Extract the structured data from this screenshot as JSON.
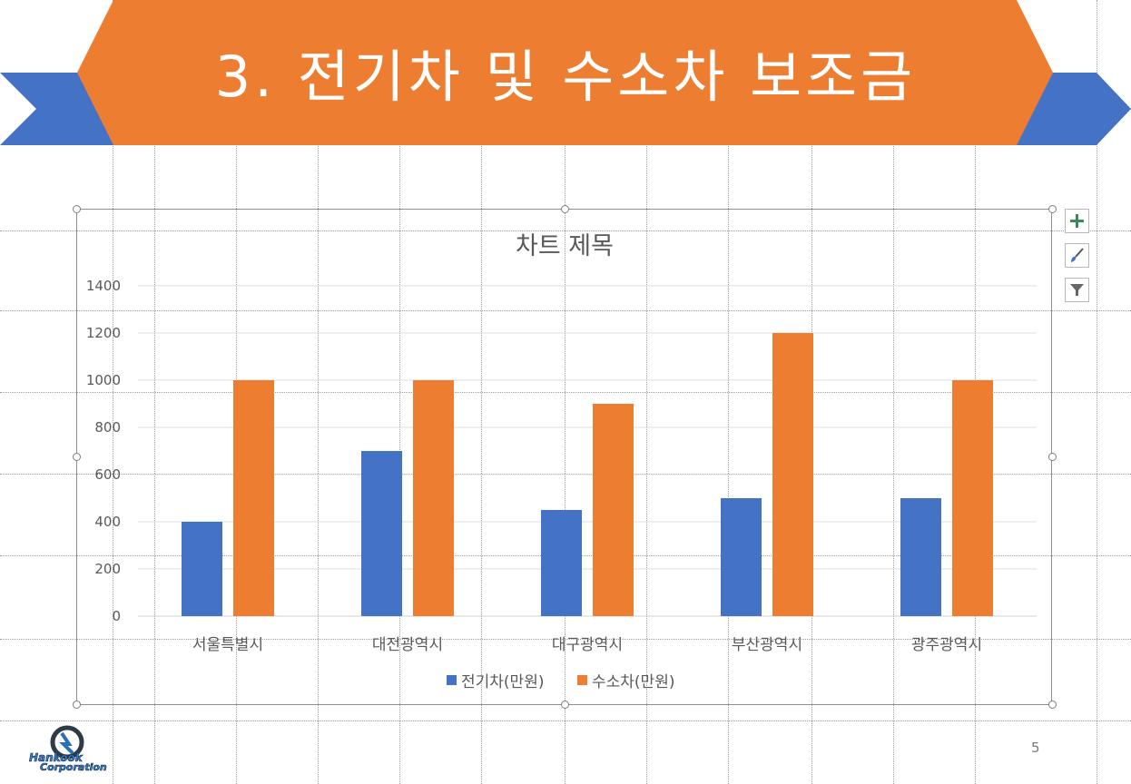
{
  "slide": {
    "title": "3. 전기차 및 수소차 보조금",
    "page_number": "5"
  },
  "logo": {
    "line1": "Hankook",
    "line2": "Corporation"
  },
  "chart_tools": {
    "add_icon": "plus-icon",
    "style_icon": "brush-icon",
    "filter_icon": "filter-icon"
  },
  "colors": {
    "banner_orange": "#ED7D31",
    "ribbon_blue": "#4472C4",
    "series_blue": "#4472C4",
    "series_orange": "#ED7D31"
  },
  "chart_data": {
    "type": "bar",
    "title": "차트 제목",
    "categories": [
      "서울특별시",
      "대전광역시",
      "대구광역시",
      "부산광역시",
      "광주광역시"
    ],
    "series": [
      {
        "name": "전기차(만원)",
        "color": "#4472C4",
        "values": [
          400,
          700,
          450,
          500,
          500
        ]
      },
      {
        "name": "수소차(만원)",
        "color": "#ED7D31",
        "values": [
          1000,
          1000,
          900,
          1200,
          1000
        ]
      }
    ],
    "yticks": [
      0,
      200,
      400,
      600,
      800,
      1000,
      1200,
      1400
    ],
    "ylim": [
      0,
      1400
    ],
    "xlabel": "",
    "ylabel": "",
    "grid": true,
    "legend_position": "bottom"
  }
}
